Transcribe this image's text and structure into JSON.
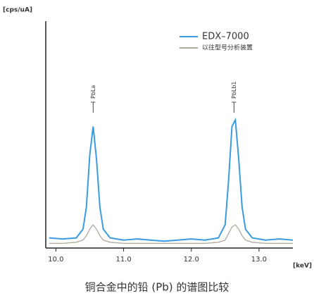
{
  "chart_data": {
    "type": "line",
    "y_unit": "[cps/uA]",
    "x_unit": "[keV]",
    "caption": "铜合金中的铅 (Pb) 的谱图比较",
    "x": [
      9.9,
      10.1,
      10.3,
      10.4,
      10.45,
      10.5,
      10.55,
      10.6,
      10.65,
      10.7,
      10.8,
      11.0,
      11.2,
      11.4,
      11.6,
      11.8,
      12.0,
      12.2,
      12.4,
      12.5,
      12.55,
      12.6,
      12.65,
      12.7,
      12.75,
      12.8,
      12.9,
      13.1,
      13.3,
      13.5
    ],
    "series": [
      {
        "name": "EDX–7000",
        "color": "#3a9be0",
        "values": [
          4,
          3.5,
          4,
          8,
          18,
          42,
          55,
          40,
          18,
          8,
          4,
          3,
          3.5,
          3,
          2.5,
          3,
          3.5,
          3,
          4,
          10,
          30,
          55,
          58,
          40,
          18,
          8,
          4,
          3,
          3.5,
          3
        ]
      },
      {
        "name": "以往型号分析装置",
        "color": "#b0a89c",
        "values": [
          1.5,
          1.5,
          2,
          3,
          5,
          8,
          10,
          8,
          5,
          3,
          2,
          1.5,
          1.5,
          1.5,
          1.5,
          1.5,
          1.5,
          1.5,
          2,
          3,
          6,
          9,
          10,
          8,
          5,
          3,
          2,
          1.5,
          1.5,
          1.5
        ]
      }
    ],
    "annotations": [
      {
        "text": "PbLa",
        "x": 10.55
      },
      {
        "text": "PbLb1",
        "x": 12.63
      }
    ],
    "xlim": [
      9.85,
      13.5
    ],
    "ylim": [
      0,
      100
    ],
    "xticks": [
      {
        "value": 10,
        "label": "10.0"
      },
      {
        "value": 11,
        "label": "11.0"
      },
      {
        "value": 12,
        "label": "12.0"
      },
      {
        "value": 13,
        "label": "13.0"
      }
    ],
    "legend": "upper right",
    "grid": false
  }
}
